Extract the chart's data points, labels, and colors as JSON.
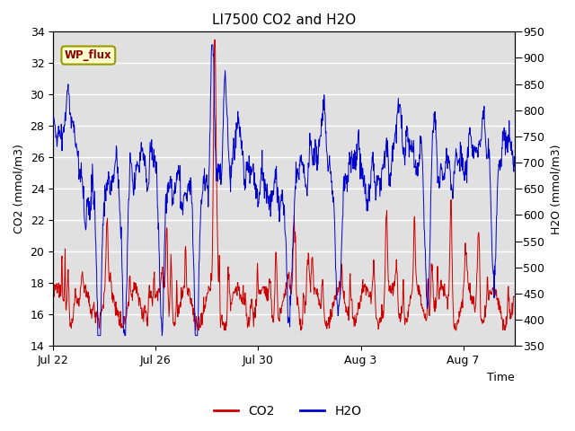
{
  "title": "LI7500 CO2 and H2O",
  "xlabel": "Time",
  "ylabel_left": "CO2 (mmol/m3)",
  "ylabel_right": "H2O (mmol/m3)",
  "ylim_left": [
    14,
    34
  ],
  "ylim_right": [
    350,
    950
  ],
  "yticks_left": [
    14,
    16,
    18,
    20,
    22,
    24,
    26,
    28,
    30,
    32,
    34
  ],
  "yticks_right": [
    350,
    400,
    450,
    500,
    550,
    600,
    650,
    700,
    750,
    800,
    850,
    900,
    950
  ],
  "xtick_labels": [
    "Jul 22",
    "Jul 26",
    "Jul 30",
    "Aug 3",
    "Aug 7"
  ],
  "xtick_positions": [
    0,
    4,
    8,
    12,
    16
  ],
  "annotation_text": "WP_flux",
  "plot_bg_color": "#e0e0e0",
  "co2_color": "#cc0000",
  "h2o_color": "#0000cc",
  "grid_color": "#ffffff",
  "title_fontsize": 11,
  "label_fontsize": 9,
  "tick_fontsize": 9
}
